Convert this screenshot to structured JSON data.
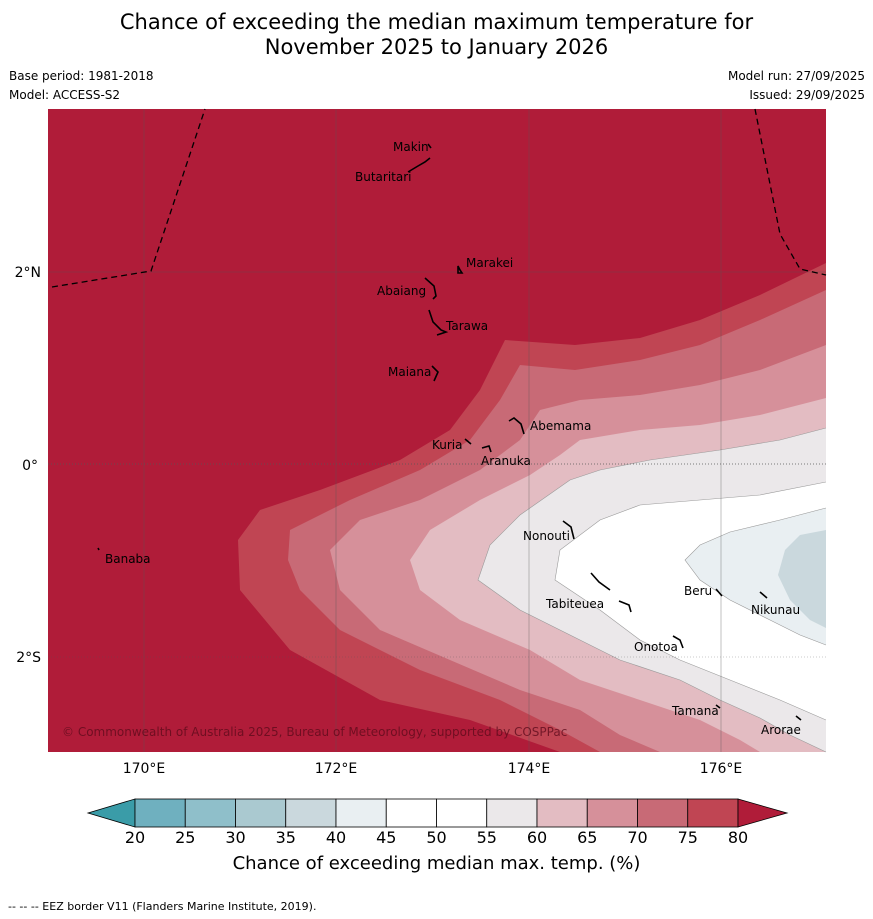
{
  "title_line1": "Chance of exceeding the median maximum temperature for",
  "title_line2": "November 2025 to January 2026",
  "meta": {
    "base_period": "Base period: 1981-2018",
    "model": "Model: ACCESS-S2",
    "model_run": "Model run: 27/09/2025",
    "issued": "Issued: 29/09/2025"
  },
  "axes": {
    "lon_ticks": [
      {
        "value": 170,
        "label": "170°E"
      },
      {
        "value": 172,
        "label": "172°E"
      },
      {
        "value": 174,
        "label": "174°E"
      },
      {
        "value": 176,
        "label": "176°E"
      }
    ],
    "lat_ticks": [
      {
        "value": 2,
        "label": "2°N"
      },
      {
        "value": 0,
        "label": "0°"
      },
      {
        "value": -2,
        "label": "2°S"
      }
    ],
    "lon_range": [
      169.0,
      177.05
    ],
    "lat_range": [
      -3.0,
      3.7
    ]
  },
  "islands": [
    {
      "name": "Makin",
      "lon": 173.0,
      "lat": 3.35
    },
    {
      "name": "Butaritari",
      "lon": 172.9,
      "lat": 3.15
    },
    {
      "name": "Marakei",
      "lon": 173.3,
      "lat": 2.0
    },
    {
      "name": "Abaiang",
      "lon": 173.0,
      "lat": 1.85
    },
    {
      "name": "Tarawa",
      "lon": 173.05,
      "lat": 1.4
    },
    {
      "name": "Maiana",
      "lon": 173.0,
      "lat": 0.92
    },
    {
      "name": "Abemama",
      "lon": 173.85,
      "lat": 0.4
    },
    {
      "name": "Kuria",
      "lon": 173.4,
      "lat": 0.23
    },
    {
      "name": "Aranuka",
      "lon": 173.6,
      "lat": 0.16
    },
    {
      "name": "Banaba",
      "lon": 169.55,
      "lat": -0.87
    },
    {
      "name": "Nonouti",
      "lon": 174.4,
      "lat": -0.65
    },
    {
      "name": "Tabiteuea",
      "lon": 174.85,
      "lat": -1.35
    },
    {
      "name": "Beru",
      "lon": 176.0,
      "lat": -1.33
    },
    {
      "name": "Nikunau",
      "lon": 176.45,
      "lat": -1.38
    },
    {
      "name": "Onotoa",
      "lon": 175.55,
      "lat": -1.8
    },
    {
      "name": "Tamana",
      "lon": 176.0,
      "lat": -2.5
    },
    {
      "name": "Arorae",
      "lon": 176.8,
      "lat": -2.65
    }
  ],
  "credit": "© Commonwealth of Australia 2025, Bureau of Meteorology, supported by COSPPac",
  "colorbar": {
    "title": "Chance of exceeding median max. temp. (%)",
    "levels": [
      20,
      25,
      30,
      35,
      40,
      45,
      50,
      55,
      60,
      65,
      70,
      75,
      80
    ],
    "colors": [
      "#3a9ca8",
      "#6fb0bf",
      "#8fbfca",
      "#aac9d0",
      "#cad8dd",
      "#e9eff2",
      "#ffffff",
      "#ffffff",
      "#ebe8ea",
      "#e3bcc2",
      "#d6909a",
      "#c86a76",
      "#c04553",
      "#b01c39"
    ]
  },
  "chart_data": {
    "type": "heatmap",
    "title": "Chance of exceeding the median maximum temperature for November 2025 to January 2026",
    "variable": "Chance of exceeding median max. temp. (%)",
    "x": "longitude (°E)",
    "y": "latitude",
    "xlim": [
      169.0,
      177.05
    ],
    "ylim": [
      -3.0,
      3.7
    ],
    "summary": {
      "north_and_west": "above 80%",
      "east_near_equator": "40-55%",
      "far_east_around_-1.3": "30-40%"
    }
  },
  "footer": "--  --  -- EEZ border V11 (Flanders Marine Institute, 2019)."
}
